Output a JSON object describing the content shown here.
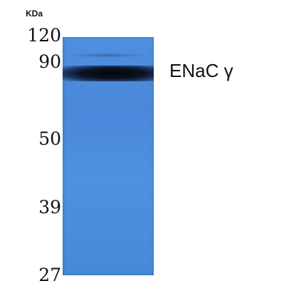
{
  "unit_label": "KDa",
  "markers": [
    "120",
    "90",
    "50",
    "39",
    "27"
  ],
  "protein_label": "ENaC γ",
  "colors": {
    "membrane": "#4a88da",
    "band": "#0a1222",
    "background": "#ffffff"
  }
}
